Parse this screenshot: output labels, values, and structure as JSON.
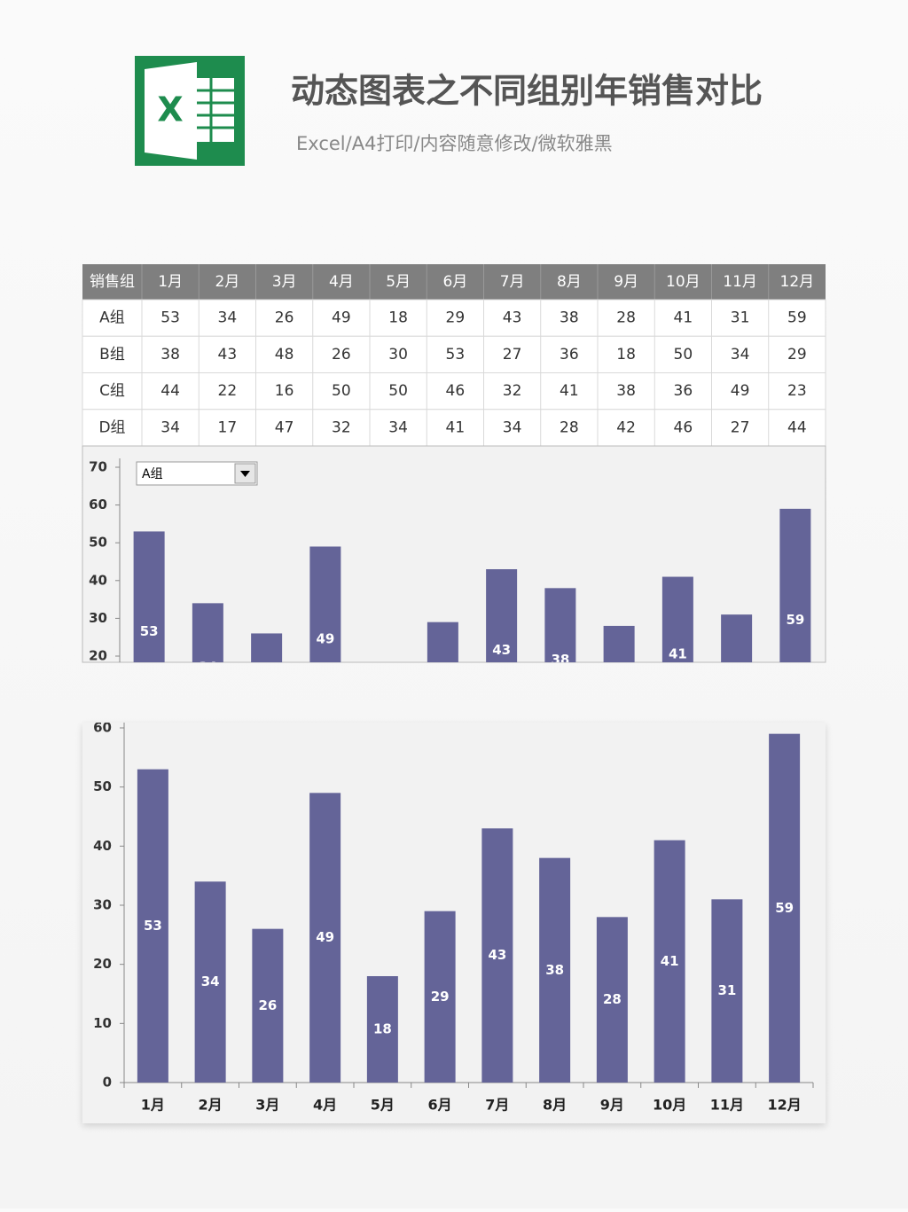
{
  "header": {
    "title": "动态图表之不同组别年销售对比",
    "subtitle": "Excel/A4打印/内容随意修改/微软雅黑"
  },
  "table": {
    "columns": [
      "销售组",
      "1月",
      "2月",
      "3月",
      "4月",
      "5月",
      "6月",
      "7月",
      "8月",
      "9月",
      "10月",
      "11月",
      "12月"
    ],
    "rows": [
      [
        "A组",
        53,
        34,
        26,
        49,
        18,
        29,
        43,
        38,
        28,
        41,
        31,
        59
      ],
      [
        "B组",
        38,
        43,
        48,
        26,
        30,
        53,
        27,
        36,
        18,
        50,
        34,
        29
      ],
      [
        "C组",
        44,
        22,
        16,
        50,
        50,
        46,
        32,
        41,
        38,
        36,
        49,
        23
      ],
      [
        "D组",
        34,
        17,
        47,
        32,
        34,
        41,
        34,
        28,
        42,
        46,
        27,
        44
      ]
    ]
  },
  "chart_data": [
    {
      "type": "bar",
      "selector": "A组",
      "color": "#646498",
      "values": [
        53,
        34,
        26,
        49,
        18,
        29,
        43,
        38,
        28,
        41,
        31,
        59
      ],
      "ylim": [
        20,
        70
      ],
      "yticks": [
        20,
        30,
        40,
        50,
        60,
        70
      ]
    },
    {
      "type": "bar",
      "color": "#646498",
      "categories": [
        "1月",
        "2月",
        "3月",
        "4月",
        "5月",
        "6月",
        "7月",
        "8月",
        "9月",
        "10月",
        "11月",
        "12月"
      ],
      "values": [
        53,
        34,
        26,
        49,
        18,
        29,
        43,
        38,
        28,
        41,
        31,
        59
      ],
      "ylim": [
        0,
        60
      ],
      "yticks": [
        0,
        10,
        20,
        30,
        40,
        50,
        60
      ]
    }
  ]
}
